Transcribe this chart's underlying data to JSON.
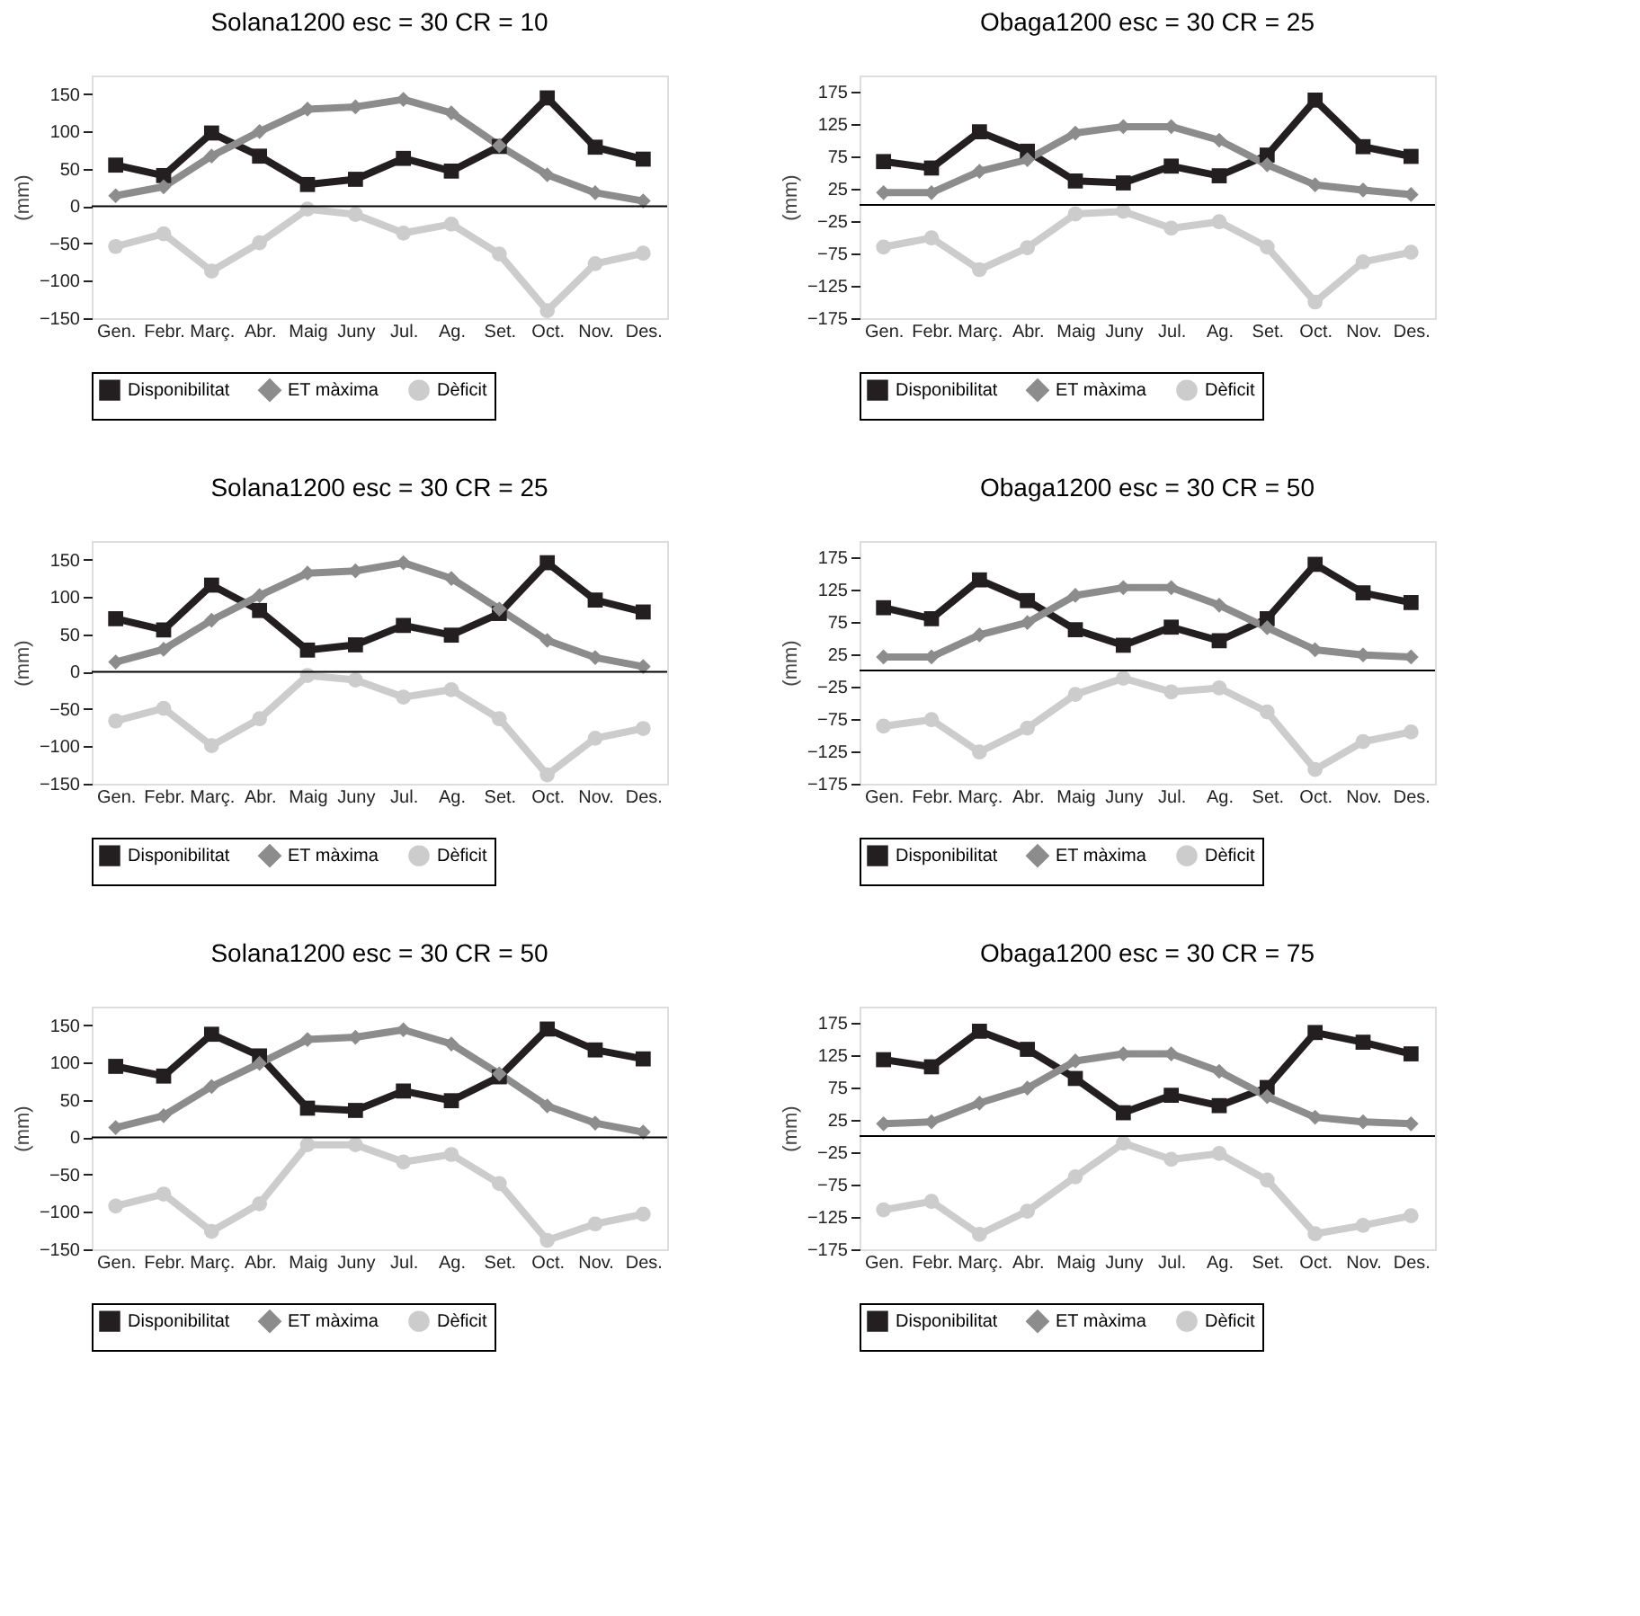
{
  "chart_data": [
    {
      "type": "line",
      "title": "Solana1200 esc = 30 CR = 10",
      "ylabel": "(mm)",
      "categories": [
        "Gen.",
        "Febr.",
        "Març.",
        "Abr.",
        "Maig",
        "Juny",
        "Jul.",
        "Ag.",
        "Set.",
        "Oct.",
        "Nov.",
        "Des."
      ],
      "ylim": [
        -150,
        175
      ],
      "yticks": [
        -150,
        -100,
        -50,
        0,
        50,
        100,
        150
      ],
      "grid": false,
      "legend": "bottom",
      "line_style": "solid",
      "ref_lines": [
        {
          "axis": "y",
          "value": 0
        }
      ],
      "series": [
        {
          "name": "Disponibilitat",
          "color": "#231f20",
          "marker": "square",
          "values": [
            55,
            41,
            98,
            67,
            29,
            36,
            64,
            47,
            80,
            145,
            79,
            63
          ]
        },
        {
          "name": "ET màxima",
          "color": "#8c8c8c",
          "marker": "diamond",
          "values": [
            14,
            26,
            67,
            100,
            130,
            133,
            143,
            125,
            81,
            42,
            18,
            7
          ]
        },
        {
          "name": "Dèficit",
          "color": "#cccccc",
          "marker": "circle",
          "values": [
            -54,
            -37,
            -87,
            -49,
            -4,
            -11,
            -36,
            -24,
            -64,
            -140,
            -77,
            -63
          ]
        }
      ]
    },
    {
      "type": "line",
      "title": "Obaga1200 esc = 30 CR = 25",
      "ylabel": "(mm)",
      "categories": [
        "Gen.",
        "Febr.",
        "Març.",
        "Abr.",
        "Maig",
        "Juny",
        "Jul.",
        "Ag.",
        "Set.",
        "Oct.",
        "Nov.",
        "Des."
      ],
      "ylim": [
        -175,
        200
      ],
      "yticks": [
        -175,
        -125,
        -75,
        -25,
        25,
        75,
        125,
        175
      ],
      "grid": false,
      "legend": "bottom",
      "line_style": "solid",
      "ref_lines": [
        {
          "axis": "y",
          "value": 0
        }
      ],
      "series": [
        {
          "name": "Disponibilitat",
          "color": "#231f20",
          "marker": "square",
          "values": [
            67,
            57,
            113,
            83,
            37,
            34,
            60,
            45,
            77,
            162,
            90,
            75
          ]
        },
        {
          "name": "ET màxima",
          "color": "#8c8c8c",
          "marker": "diamond",
          "values": [
            19,
            19,
            52,
            70,
            111,
            121,
            121,
            100,
            62,
            31,
            23,
            16
          ]
        },
        {
          "name": "Dèficit",
          "color": "#cccccc",
          "marker": "circle",
          "values": [
            -65,
            -51,
            -100,
            -66,
            -14,
            -10,
            -36,
            -26,
            -65,
            -150,
            -88,
            -73
          ]
        }
      ]
    },
    {
      "type": "line",
      "title": "Solana1200 esc = 30 CR = 25",
      "ylabel": "(mm)",
      "categories": [
        "Gen.",
        "Febr.",
        "Març.",
        "Abr.",
        "Maig",
        "Juny",
        "Jul.",
        "Ag.",
        "Set.",
        "Oct.",
        "Nov.",
        "Des."
      ],
      "ylim": [
        -150,
        175
      ],
      "yticks": [
        -150,
        -100,
        -50,
        0,
        50,
        100,
        150
      ],
      "grid": false,
      "legend": "bottom",
      "line_style": "solid",
      "ref_lines": [
        {
          "axis": "y",
          "value": 0
        }
      ],
      "series": [
        {
          "name": "Disponibilitat",
          "color": "#231f20",
          "marker": "square",
          "values": [
            71,
            56,
            116,
            82,
            29,
            36,
            62,
            49,
            78,
            146,
            96,
            80
          ]
        },
        {
          "name": "ET màxima",
          "color": "#8c8c8c",
          "marker": "diamond",
          "values": [
            13,
            30,
            69,
            102,
            132,
            135,
            146,
            125,
            84,
            42,
            19,
            7
          ]
        },
        {
          "name": "Dèficit",
          "color": "#cccccc",
          "marker": "circle",
          "values": [
            -66,
            -49,
            -99,
            -63,
            -5,
            -11,
            -34,
            -24,
            -63,
            -138,
            -89,
            -76
          ]
        }
      ]
    },
    {
      "type": "line",
      "title": "Obaga1200 esc = 30 CR = 50",
      "ylabel": "(mm)",
      "categories": [
        "Gen.",
        "Febr.",
        "Març.",
        "Abr.",
        "Maig",
        "Juny",
        "Jul.",
        "Ag.",
        "Set.",
        "Oct.",
        "Nov.",
        "Des."
      ],
      "ylim": [
        -175,
        200
      ],
      "yticks": [
        -175,
        -125,
        -75,
        -25,
        25,
        75,
        125,
        175
      ],
      "grid": false,
      "legend": "bottom",
      "line_style": "solid",
      "ref_lines": [
        {
          "axis": "y",
          "value": 0
        }
      ],
      "series": [
        {
          "name": "Disponibilitat",
          "color": "#231f20",
          "marker": "square",
          "values": [
            97,
            80,
            140,
            108,
            63,
            39,
            67,
            46,
            80,
            164,
            120,
            105
          ]
        },
        {
          "name": "ET màxima",
          "color": "#8c8c8c",
          "marker": "diamond",
          "values": [
            21,
            21,
            55,
            74,
            116,
            128,
            128,
            101,
            66,
            32,
            24,
            21
          ]
        },
        {
          "name": "Dèficit",
          "color": "#cccccc",
          "marker": "circle",
          "values": [
            -86,
            -76,
            -126,
            -89,
            -37,
            -12,
            -33,
            -27,
            -64,
            -153,
            -110,
            -95
          ]
        }
      ]
    },
    {
      "type": "line",
      "title": "Solana1200 esc = 30 CR = 50",
      "ylabel": "(mm)",
      "categories": [
        "Gen.",
        "Febr.",
        "Març.",
        "Abr.",
        "Maig",
        "Juny",
        "Jul.",
        "Ag.",
        "Set.",
        "Oct.",
        "Nov.",
        "Des."
      ],
      "ylim": [
        -150,
        175
      ],
      "yticks": [
        -150,
        -100,
        -50,
        0,
        50,
        100,
        150
      ],
      "grid": false,
      "legend": "bottom",
      "line_style": "solid",
      "ref_lines": [
        {
          "axis": "y",
          "value": 0
        }
      ],
      "series": [
        {
          "name": "Disponibilitat",
          "color": "#231f20",
          "marker": "square",
          "values": [
            95,
            82,
            138,
            109,
            39,
            36,
            62,
            49,
            81,
            145,
            117,
            105
          ]
        },
        {
          "name": "ET màxima",
          "color": "#8c8c8c",
          "marker": "diamond",
          "values": [
            13,
            29,
            68,
            99,
            131,
            134,
            144,
            125,
            85,
            42,
            19,
            7
          ]
        },
        {
          "name": "Dèficit",
          "color": "#cccccc",
          "marker": "circle",
          "values": [
            -92,
            -76,
            -126,
            -89,
            -10,
            -10,
            -33,
            -23,
            -62,
            -138,
            -116,
            -103
          ]
        }
      ]
    },
    {
      "type": "line",
      "title": "Obaga1200 esc = 30 CR = 75",
      "ylabel": "(mm)",
      "categories": [
        "Gen.",
        "Febr.",
        "Març.",
        "Abr.",
        "Maig",
        "Juny",
        "Jul.",
        "Ag.",
        "Set.",
        "Oct.",
        "Nov.",
        "Des."
      ],
      "ylim": [
        -175,
        200
      ],
      "yticks": [
        -175,
        -125,
        -75,
        -25,
        25,
        75,
        125,
        175
      ],
      "grid": false,
      "legend": "bottom",
      "line_style": "solid",
      "ref_lines": [
        {
          "axis": "y",
          "value": 0
        }
      ],
      "series": [
        {
          "name": "Disponibilitat",
          "color": "#231f20",
          "marker": "square",
          "values": [
            118,
            107,
            162,
            134,
            89,
            36,
            63,
            47,
            75,
            160,
            145,
            127
          ]
        },
        {
          "name": "ET màxima",
          "color": "#8c8c8c",
          "marker": "diamond",
          "values": [
            19,
            22,
            51,
            74,
            116,
            127,
            127,
            100,
            61,
            29,
            22,
            19
          ]
        },
        {
          "name": "Dèficit",
          "color": "#cccccc",
          "marker": "circle",
          "values": [
            -114,
            -101,
            -152,
            -116,
            -63,
            -11,
            -36,
            -27,
            -68,
            -151,
            -138,
            -123
          ]
        }
      ]
    }
  ]
}
